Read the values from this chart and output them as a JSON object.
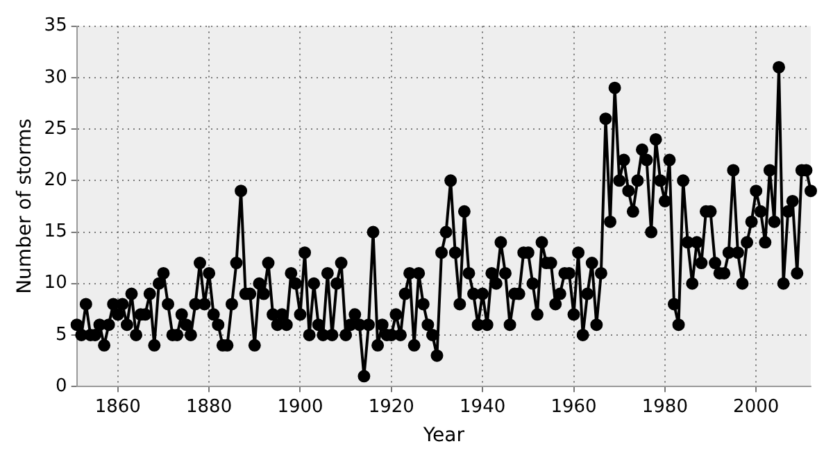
{
  "chart_data": {
    "type": "line",
    "xlabel": "Year",
    "ylabel": "Number of storms",
    "x": [
      1851,
      1852,
      1853,
      1854,
      1855,
      1856,
      1857,
      1858,
      1859,
      1860,
      1861,
      1862,
      1863,
      1864,
      1865,
      1866,
      1867,
      1868,
      1869,
      1870,
      1871,
      1872,
      1873,
      1874,
      1875,
      1876,
      1877,
      1878,
      1879,
      1880,
      1881,
      1882,
      1883,
      1884,
      1885,
      1886,
      1887,
      1888,
      1889,
      1890,
      1891,
      1892,
      1893,
      1894,
      1895,
      1896,
      1897,
      1898,
      1899,
      1900,
      1901,
      1902,
      1903,
      1904,
      1905,
      1906,
      1907,
      1908,
      1909,
      1910,
      1911,
      1912,
      1913,
      1914,
      1915,
      1916,
      1917,
      1918,
      1919,
      1920,
      1921,
      1922,
      1923,
      1924,
      1925,
      1926,
      1927,
      1928,
      1929,
      1930,
      1931,
      1932,
      1933,
      1934,
      1935,
      1936,
      1937,
      1938,
      1939,
      1940,
      1941,
      1942,
      1943,
      1944,
      1945,
      1946,
      1947,
      1948,
      1949,
      1950,
      1951,
      1952,
      1953,
      1954,
      1955,
      1956,
      1957,
      1958,
      1959,
      1960,
      1961,
      1962,
      1963,
      1964,
      1965,
      1966,
      1967,
      1968,
      1969,
      1970,
      1971,
      1972,
      1973,
      1974,
      1975,
      1976,
      1977,
      1978,
      1979,
      1980,
      1981,
      1982,
      1983,
      1984,
      1985,
      1986,
      1987,
      1988,
      1989,
      1990,
      1991,
      1992,
      1993,
      1994,
      1995,
      1996,
      1997,
      1998,
      1999,
      2000,
      2001,
      2002,
      2003,
      2004,
      2005,
      2006,
      2007,
      2008,
      2009,
      2010,
      2011,
      2012
    ],
    "series": [
      {
        "color": "#000000",
        "values": [
          6,
          5,
          8,
          5,
          5,
          6,
          4,
          6,
          8,
          7,
          8,
          6,
          9,
          5,
          7,
          7,
          9,
          4,
          10,
          11,
          8,
          5,
          5,
          7,
          6,
          5,
          8,
          12,
          8,
          11,
          7,
          6,
          4,
          4,
          8,
          12,
          19,
          9,
          9,
          4,
          10,
          9,
          12,
          7,
          6,
          7,
          6,
          11,
          10,
          7,
          13,
          5,
          10,
          6,
          5,
          11,
          5,
          10,
          12,
          5,
          6,
          7,
          6,
          1,
          6,
          15,
          4,
          6,
          5,
          5,
          7,
          5,
          9,
          11,
          4,
          11,
          8,
          6,
          5,
          3,
          13,
          15,
          20,
          13,
          8,
          17,
          11,
          9,
          6,
          9,
          6,
          11,
          10,
          14,
          11,
          6,
          9,
          9,
          13,
          13,
          10,
          7,
          14,
          12,
          12,
          8,
          9,
          11,
          11,
          7,
          13,
          5,
          9,
          12,
          6,
          11,
          26,
          16,
          29,
          20,
          22,
          19,
          17,
          20,
          23,
          22,
          15,
          24,
          20,
          18,
          22,
          8,
          6,
          20,
          14,
          10,
          14,
          12,
          17,
          17,
          12,
          11,
          11,
          13,
          21,
          13,
          10,
          14,
          16,
          19,
          17,
          14,
          21,
          16,
          31,
          10,
          17,
          18,
          11,
          21,
          21,
          19
        ]
      }
    ],
    "xlim": [
      1851,
      2012
    ],
    "xticks": [
      1860,
      1880,
      1900,
      1920,
      1940,
      1960,
      1980,
      2000
    ],
    "ylim": [
      0,
      35
    ],
    "yticks": [
      0,
      5,
      10,
      15,
      20,
      25,
      30,
      35
    ],
    "grid": true,
    "marker": "circle",
    "line_style": "solid",
    "legend": false
  }
}
